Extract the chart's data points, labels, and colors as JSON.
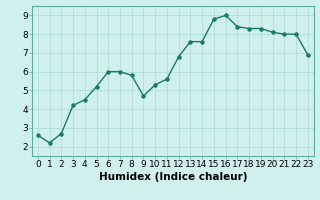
{
  "x": [
    0,
    1,
    2,
    3,
    4,
    5,
    6,
    7,
    8,
    9,
    10,
    11,
    12,
    13,
    14,
    15,
    16,
    17,
    18,
    19,
    20,
    21,
    22,
    23
  ],
  "y": [
    2.6,
    2.2,
    2.7,
    4.2,
    4.5,
    5.2,
    6.0,
    6.0,
    5.8,
    4.7,
    5.3,
    5.6,
    6.8,
    7.6,
    7.6,
    8.8,
    9.0,
    8.4,
    8.3,
    8.3,
    8.1,
    8.0,
    8.0,
    6.9
  ],
  "xlabel": "Humidex (Indice chaleur)",
  "ylim": [
    1.5,
    9.5
  ],
  "xlim": [
    -0.5,
    23.5
  ],
  "line_color": "#1a7a6e",
  "bg_color": "#cff0ec",
  "grid_color": "#b0ddd8",
  "marker": "o",
  "marker_size": 2.2,
  "line_width": 1.0,
  "xlabel_fontsize": 7.5,
  "tick_fontsize": 6.5,
  "yticks": [
    2,
    3,
    4,
    5,
    6,
    7,
    8,
    9
  ],
  "xticks": [
    0,
    1,
    2,
    3,
    4,
    5,
    6,
    7,
    8,
    9,
    10,
    11,
    12,
    13,
    14,
    15,
    16,
    17,
    18,
    19,
    20,
    21,
    22,
    23
  ]
}
